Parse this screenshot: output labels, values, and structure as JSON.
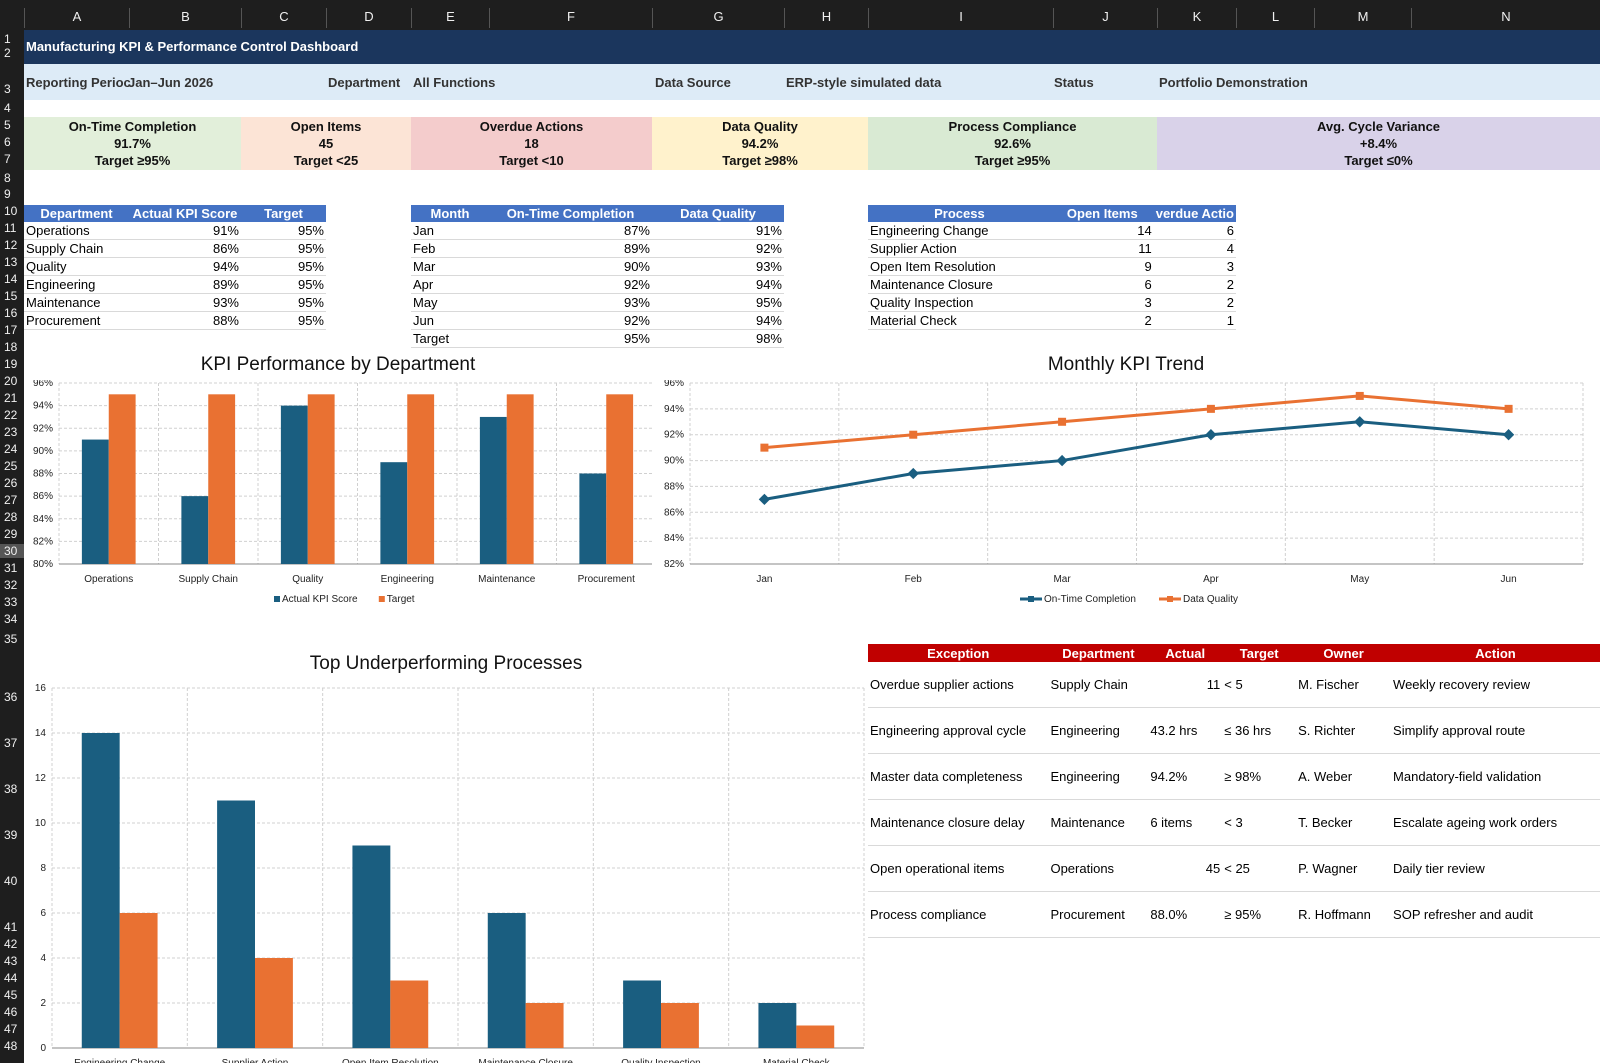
{
  "columns": [
    "A",
    "B",
    "C",
    "D",
    "E",
    "F",
    "G",
    "H",
    "I",
    "J",
    "K",
    "L",
    "M",
    "N"
  ],
  "rows": [
    "1",
    "2",
    "3",
    "4",
    "5",
    "6",
    "7",
    "8",
    "9",
    "10",
    "11",
    "12",
    "13",
    "14",
    "15",
    "16",
    "17",
    "18",
    "19",
    "20",
    "21",
    "22",
    "23",
    "24",
    "25",
    "26",
    "27",
    "28",
    "29",
    "30",
    "31",
    "32",
    "33",
    "34",
    "35",
    "36",
    "37",
    "38",
    "39",
    "40",
    "41",
    "42",
    "43",
    "44",
    "45",
    "46",
    "47",
    "48"
  ],
  "title": "Manufacturing KPI & Performance Control Dashboard",
  "info": {
    "reporting_label": "Reporting Perioc",
    "reporting_value": "Jan–Jun 2026",
    "department_label": "Department",
    "department_value": "All Functions",
    "source_label": "Data Source",
    "source_value": "ERP-style simulated data",
    "status_label": "Status",
    "status_value": "Portfolio Demonstration"
  },
  "kpis": [
    {
      "name": "On-Time Completion",
      "value": "91.7%",
      "target": "Target ≥95%",
      "color": "#e2efda"
    },
    {
      "name": "Open Items",
      "value": "45",
      "target": "Target <25",
      "color": "#fce4d6"
    },
    {
      "name": "Overdue Actions",
      "value": "18",
      "target": "Target <10",
      "color": "#f4cccc"
    },
    {
      "name": "Data Quality",
      "value": "94.2%",
      "target": "Target ≥98%",
      "color": "#fff2cc"
    },
    {
      "name": "Process Compliance",
      "value": "92.6%",
      "target": "Target ≥95%",
      "color": "#d9ead3"
    },
    {
      "name": "Avg. Cycle Variance",
      "value": "+8.4%",
      "target": "Target ≤0%",
      "color": "#d9d2e9"
    }
  ],
  "dept_table": {
    "headers": [
      "Department",
      "Actual KPI Score",
      "Target"
    ],
    "rows": [
      [
        "Operations",
        "91%",
        "95%"
      ],
      [
        "Supply Chain",
        "86%",
        "95%"
      ],
      [
        "Quality",
        "94%",
        "95%"
      ],
      [
        "Engineering",
        "89%",
        "95%"
      ],
      [
        "Maintenance",
        "93%",
        "95%"
      ],
      [
        "Procurement",
        "88%",
        "95%"
      ]
    ]
  },
  "month_table": {
    "headers": [
      "Month",
      "On-Time Completion",
      "Data Quality"
    ],
    "rows": [
      [
        "Jan",
        "87%",
        "91%"
      ],
      [
        "Feb",
        "89%",
        "92%"
      ],
      [
        "Mar",
        "90%",
        "93%"
      ],
      [
        "Apr",
        "92%",
        "94%"
      ],
      [
        "May",
        "93%",
        "95%"
      ],
      [
        "Jun",
        "92%",
        "94%"
      ],
      [
        "Target",
        "95%",
        "98%"
      ]
    ]
  },
  "process_table": {
    "headers": [
      "Process",
      "Open Items",
      "verdue Actio"
    ],
    "rows": [
      [
        "Engineering Change",
        "14",
        "6"
      ],
      [
        "Supplier Action",
        "11",
        "4"
      ],
      [
        "Open Item Resolution",
        "9",
        "3"
      ],
      [
        "Maintenance Closure",
        "6",
        "2"
      ],
      [
        "Quality Inspection",
        "3",
        "2"
      ],
      [
        "Material Check",
        "2",
        "1"
      ]
    ]
  },
  "exceptions": {
    "headers": [
      "Exception",
      "Department",
      "Actual",
      "Target",
      "Owner",
      "Action"
    ],
    "rows": [
      [
        "Overdue supplier actions",
        "Supply Chain",
        "11",
        "< 5",
        "M. Fischer",
        "Weekly recovery review"
      ],
      [
        "Engineering approval cycle",
        "Engineering",
        "43.2 hrs",
        "≤ 36 hrs",
        "S. Richter",
        "Simplify approval route"
      ],
      [
        "Master data completeness",
        "Engineering",
        "94.2%",
        "≥ 98%",
        "A. Weber",
        "Mandatory-field validation"
      ],
      [
        "Maintenance closure delay",
        "Maintenance",
        "6 items",
        "< 3",
        "T. Becker",
        "Escalate ageing work orders"
      ],
      [
        "Open operational items",
        "Operations",
        "45",
        "< 25",
        "P. Wagner",
        "Daily tier review"
      ],
      [
        "Process compliance",
        "Procurement",
        "88.0%",
        "≥ 95%",
        "R. Hoffmann",
        "SOP refresher and audit"
      ]
    ]
  },
  "chart_data": [
    {
      "type": "bar",
      "title": "KPI Performance by Department",
      "categories": [
        "Operations",
        "Supply Chain",
        "Quality",
        "Engineering",
        "Maintenance",
        "Procurement"
      ],
      "series": [
        {
          "name": "Actual KPI Score",
          "values": [
            91,
            86,
            94,
            89,
            93,
            88
          ],
          "color": "#1a5e80"
        },
        {
          "name": "Target",
          "values": [
            95,
            95,
            95,
            95,
            95,
            95
          ],
          "color": "#e97132"
        }
      ],
      "ylim": [
        80,
        96
      ],
      "yticks": [
        "80%",
        "82%",
        "84%",
        "86%",
        "88%",
        "90%",
        "92%",
        "94%",
        "96%"
      ],
      "legend": "bottom"
    },
    {
      "type": "line",
      "title": "Monthly KPI Trend",
      "categories": [
        "Jan",
        "Feb",
        "Mar",
        "Apr",
        "May",
        "Jun"
      ],
      "series": [
        {
          "name": "On-Time Completion",
          "values": [
            87,
            89,
            90,
            92,
            93,
            92
          ],
          "color": "#1a5e80"
        },
        {
          "name": "Data Quality",
          "values": [
            91,
            92,
            93,
            94,
            95,
            94
          ],
          "color": "#e97132"
        }
      ],
      "ylim": [
        82,
        96
      ],
      "yticks": [
        "82%",
        "84%",
        "86%",
        "88%",
        "90%",
        "92%",
        "94%",
        "96%"
      ],
      "legend": "bottom"
    },
    {
      "type": "bar",
      "title": "Top Underperforming Processes",
      "categories": [
        "Engineering Change",
        "Supplier Action",
        "Open Item Resolution",
        "Maintenance Closure",
        "Quality Inspection",
        "Material Check"
      ],
      "series": [
        {
          "name": "Open Items",
          "values": [
            14,
            11,
            9,
            6,
            3,
            2
          ],
          "color": "#1a5e80"
        },
        {
          "name": "Overdue Actions",
          "values": [
            6,
            4,
            3,
            2,
            2,
            1
          ],
          "color": "#e97132"
        }
      ],
      "ylim": [
        0,
        16
      ],
      "yticks": [
        "0",
        "2",
        "4",
        "6",
        "8",
        "10",
        "12",
        "14",
        "16"
      ]
    }
  ]
}
